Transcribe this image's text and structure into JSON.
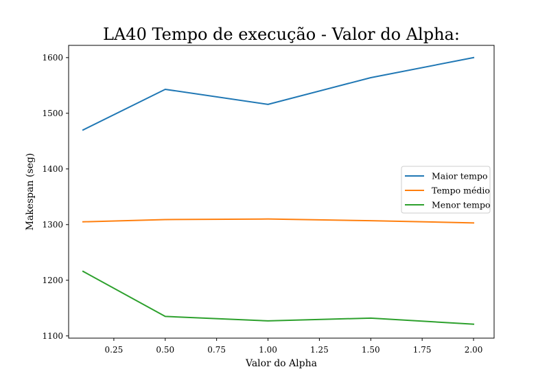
{
  "chart_data": {
    "type": "line",
    "title": "LA40 Tempo de execução - Valor do Alpha:",
    "xlabel": "Valor do Alpha",
    "ylabel": "Makespan (seg)",
    "xlim": [
      0.03,
      2.1
    ],
    "ylim": [
      1096,
      1622
    ],
    "xticks": [
      0.25,
      0.5,
      0.75,
      1.0,
      1.25,
      1.5,
      1.75,
      2.0
    ],
    "xtick_labels": [
      "0.25",
      "0.50",
      "0.75",
      "1.00",
      "1.25",
      "1.50",
      "1.75",
      "2.00"
    ],
    "yticks": [
      1100,
      1200,
      1300,
      1400,
      1500,
      1600
    ],
    "ytick_labels": [
      "1100",
      "1200",
      "1300",
      "1400",
      "1500",
      "1600"
    ],
    "grid": false,
    "legend_position": "center-right",
    "x": [
      0.1,
      0.5,
      1.0,
      1.5,
      2.0
    ],
    "series": [
      {
        "name": "Maior tempo",
        "color": "#1f77b4",
        "values": [
          1470,
          1543,
          1516,
          1564,
          1600
        ]
      },
      {
        "name": "Tempo médio",
        "color": "#ff7f0e",
        "values": [
          1305,
          1309,
          1310,
          1307,
          1303
        ]
      },
      {
        "name": "Menor tempo",
        "color": "#2ca02c",
        "values": [
          1216,
          1135,
          1127,
          1132,
          1121
        ]
      }
    ]
  }
}
